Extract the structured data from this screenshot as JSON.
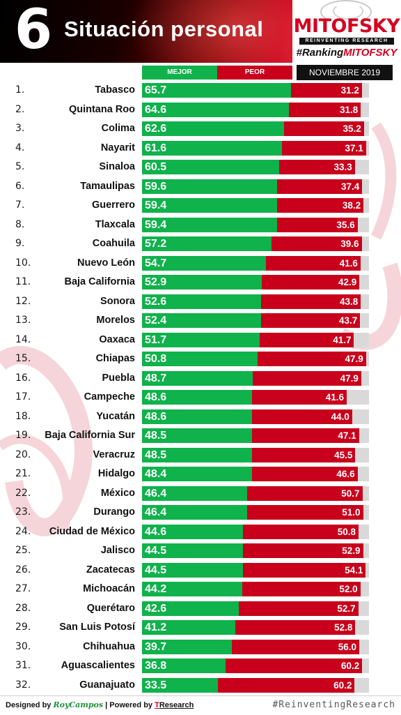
{
  "header": {
    "number": "6",
    "title": "Situación personal",
    "brand": "MITOFSKY",
    "brand_tag": "REINVENTING RESEARCH",
    "hashtag_prefix": "#Ranking",
    "hashtag_brand": "MITOFSKY",
    "date": "NOVIEMBRE 2019"
  },
  "legend": {
    "mejor": "MEJOR",
    "peor": "PEOR"
  },
  "colors": {
    "mejor": "#0fb24b",
    "peor": "#c8001c",
    "track": "#d9d9d9"
  },
  "chart_data": {
    "type": "bar",
    "stacked": true,
    "orientation": "horizontal",
    "categories": [
      "Tabasco",
      "Quintana Roo",
      "Colima",
      "Nayarit",
      "Sinaloa",
      "Tamaulipas",
      "Guerrero",
      "Tlaxcala",
      "Coahuila",
      "Nuevo León",
      "Baja California",
      "Sonora",
      "Morelos",
      "Oaxaca",
      "Chiapas",
      "Puebla",
      "Campeche",
      "Yucatán",
      "Baja California Sur",
      "Veracruz",
      "Hidalgo",
      "México",
      "Durango",
      "Ciudad de México",
      "Jalisco",
      "Zacatecas",
      "Michoacán",
      "Querétaro",
      "San Luis Potosí",
      "Chihuahua",
      "Aguascalientes",
      "Guanajuato"
    ],
    "ranks": [
      "1.",
      "2.",
      "3.",
      "4.",
      "5.",
      "6.",
      "7.",
      "8.",
      "9.",
      "10.",
      "11.",
      "12.",
      "13.",
      "14.",
      "15.",
      "16.",
      "17.",
      "18.",
      "19.",
      "20.",
      "21.",
      "22.",
      "23.",
      "24.",
      "25.",
      "26.",
      "27.",
      "28.",
      "29.",
      "30.",
      "31.",
      "32."
    ],
    "series": [
      {
        "name": "MEJOR",
        "values": [
          65.7,
          64.6,
          62.6,
          61.6,
          60.5,
          59.6,
          59.4,
          59.4,
          57.2,
          54.7,
          52.9,
          52.6,
          52.4,
          51.7,
          50.8,
          48.7,
          48.6,
          48.6,
          48.5,
          48.5,
          48.4,
          46.4,
          46.4,
          44.6,
          44.5,
          44.5,
          44.2,
          42.6,
          41.2,
          39.7,
          36.8,
          33.5
        ]
      },
      {
        "name": "PEOR",
        "values": [
          31.2,
          31.8,
          35.2,
          37.1,
          33.3,
          37.4,
          38.2,
          35.6,
          39.6,
          41.6,
          42.9,
          43.8,
          43.7,
          41.7,
          47.9,
          47.9,
          41.6,
          44.0,
          47.1,
          45.5,
          46.6,
          50.7,
          51.0,
          50.8,
          52.9,
          54.1,
          52.0,
          52.7,
          52.8,
          56.0,
          60.2,
          60.2
        ]
      }
    ],
    "value_labels": {
      "MEJOR": [
        "65.7",
        "64.6",
        "62.6",
        "61.6",
        "60.5",
        "59.6",
        "59.4",
        "59.4",
        "57.2",
        "54.7",
        "52.9",
        "52.6",
        "52.4",
        "51.7",
        "50.8",
        "48.7",
        "48.6",
        "48.6",
        "48.5",
        "48.5",
        "48.4",
        "46.4",
        "46.4",
        "44.6",
        "44.5",
        "44.5",
        "44.2",
        "42.6",
        "41.2",
        "39.7",
        "36.8",
        "33.5"
      ],
      "PEOR": [
        "31.2",
        "31.8",
        "35.2",
        "37.1",
        "33.3",
        "37.4",
        "38.2",
        "35.6",
        "39.6",
        "41.6",
        "42.9",
        "43.8",
        "43.7",
        "41.7",
        "47.9",
        "47.9",
        "41.6",
        "44.0",
        "47.1",
        "45.5",
        "46.6",
        "50.7",
        "51.0",
        "50.8",
        "52.9",
        "54.1",
        "52.0",
        "52.7",
        "52.8",
        "56.0",
        "60.2",
        "60.2"
      ]
    },
    "xlim": [
      0,
      100
    ]
  },
  "footer": {
    "designed_by": "Designed by ",
    "designer": "RoyCampos",
    "powered_by": " | Powered by ",
    "tresearch_t": "T",
    "tresearch_rest": "Research",
    "hashtag": "#ReinventingResearch"
  }
}
